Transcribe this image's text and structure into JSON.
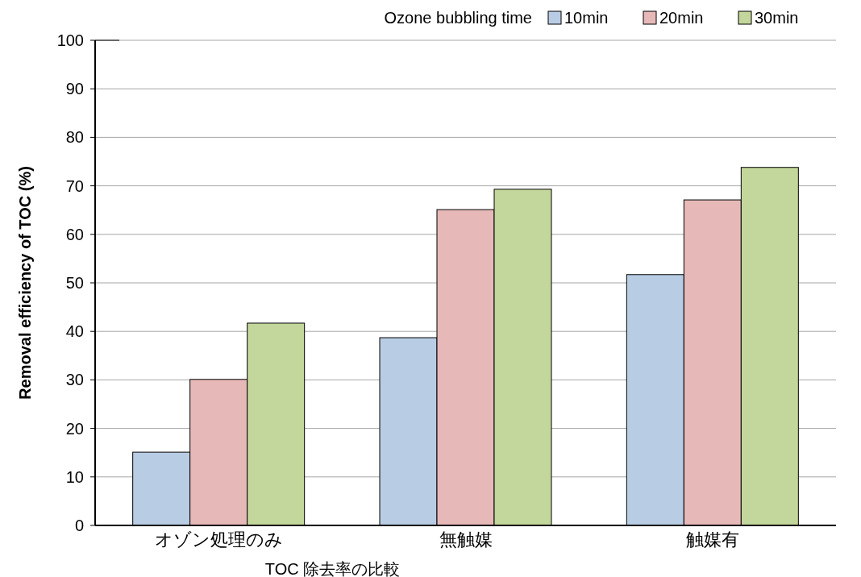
{
  "chart_data": {
    "type": "bar",
    "xlabel": "TOC 除去率の比較",
    "ylabel": "Removal efficiency of TOC (%)",
    "legend_title": "Ozone bubbling time",
    "categories": [
      "オゾン処理のみ",
      "無触媒",
      "触媒有"
    ],
    "series": [
      {
        "name": "10min",
        "color": "#b8cce4",
        "values": [
          15.1,
          38.7,
          51.7
        ]
      },
      {
        "name": "20min",
        "color": "#e6b9b8",
        "values": [
          30.1,
          65.1,
          67.1
        ]
      },
      {
        "name": "30min",
        "color": "#c3d69b",
        "values": [
          41.7,
          69.3,
          73.8
        ]
      }
    ],
    "ylim": [
      0,
      100
    ],
    "yticks": [
      0,
      10,
      20,
      30,
      40,
      50,
      60,
      70,
      80,
      90,
      100
    ],
    "grid": "y",
    "legend": "top right"
  }
}
